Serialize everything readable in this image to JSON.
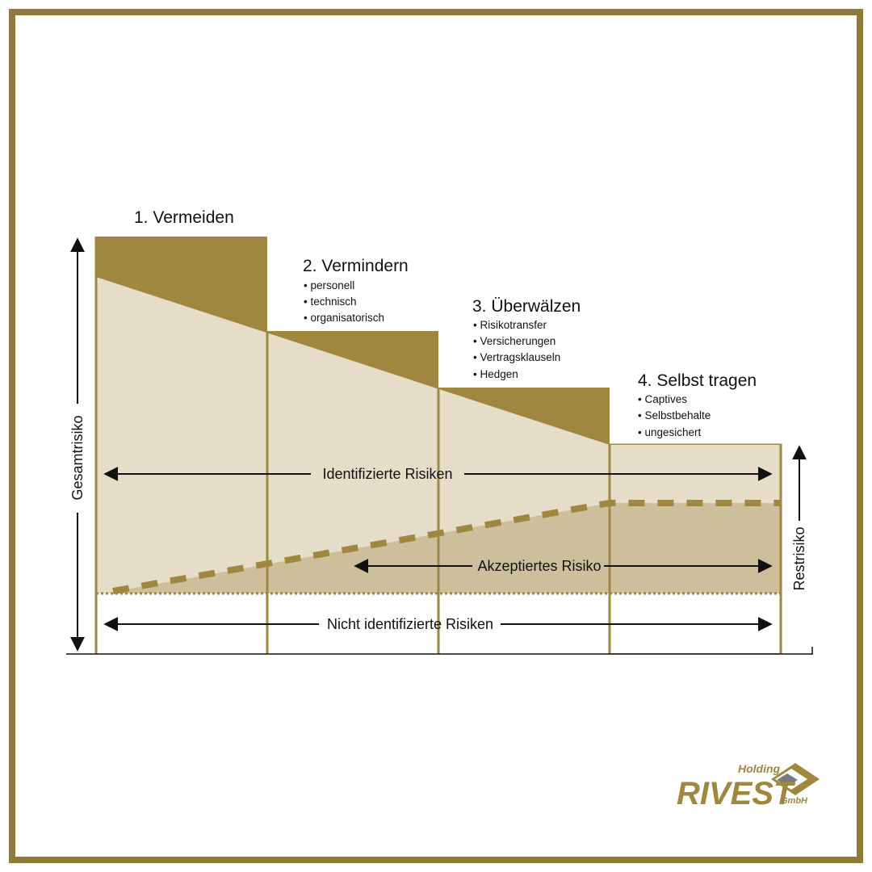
{
  "colors": {
    "gold": "#a0873f",
    "light_beige": "#e6ddc9",
    "accepted_tan": "#cdbf9c",
    "border": "#8f7a3a"
  },
  "steps": [
    {
      "title": "1. Vermeiden",
      "items": []
    },
    {
      "title": "2. Vermindern",
      "items": [
        "personell",
        "technisch",
        "organisatorisch"
      ]
    },
    {
      "title": "3. Überwälzen",
      "items": [
        "Risikotransfer",
        "Versicherungen",
        "Vertragsklauseln",
        "Hedgen"
      ]
    },
    {
      "title": "4. Selbst tragen",
      "items": [
        "Captives",
        "Selbstbehalte",
        "ungesichert"
      ]
    }
  ],
  "arrows": {
    "identified": "Identifizierte Risiken",
    "accepted": "Akzeptiertes Risiko",
    "not_identified": "Nicht identifizierte Risiken"
  },
  "axes": {
    "left": "Gesamtrisiko",
    "right": "Restrisiko"
  },
  "logo": {
    "top": "Holding",
    "main": "RIVEST",
    "suffix": "GmbH",
    "icon": "diamond-logo-icon"
  }
}
